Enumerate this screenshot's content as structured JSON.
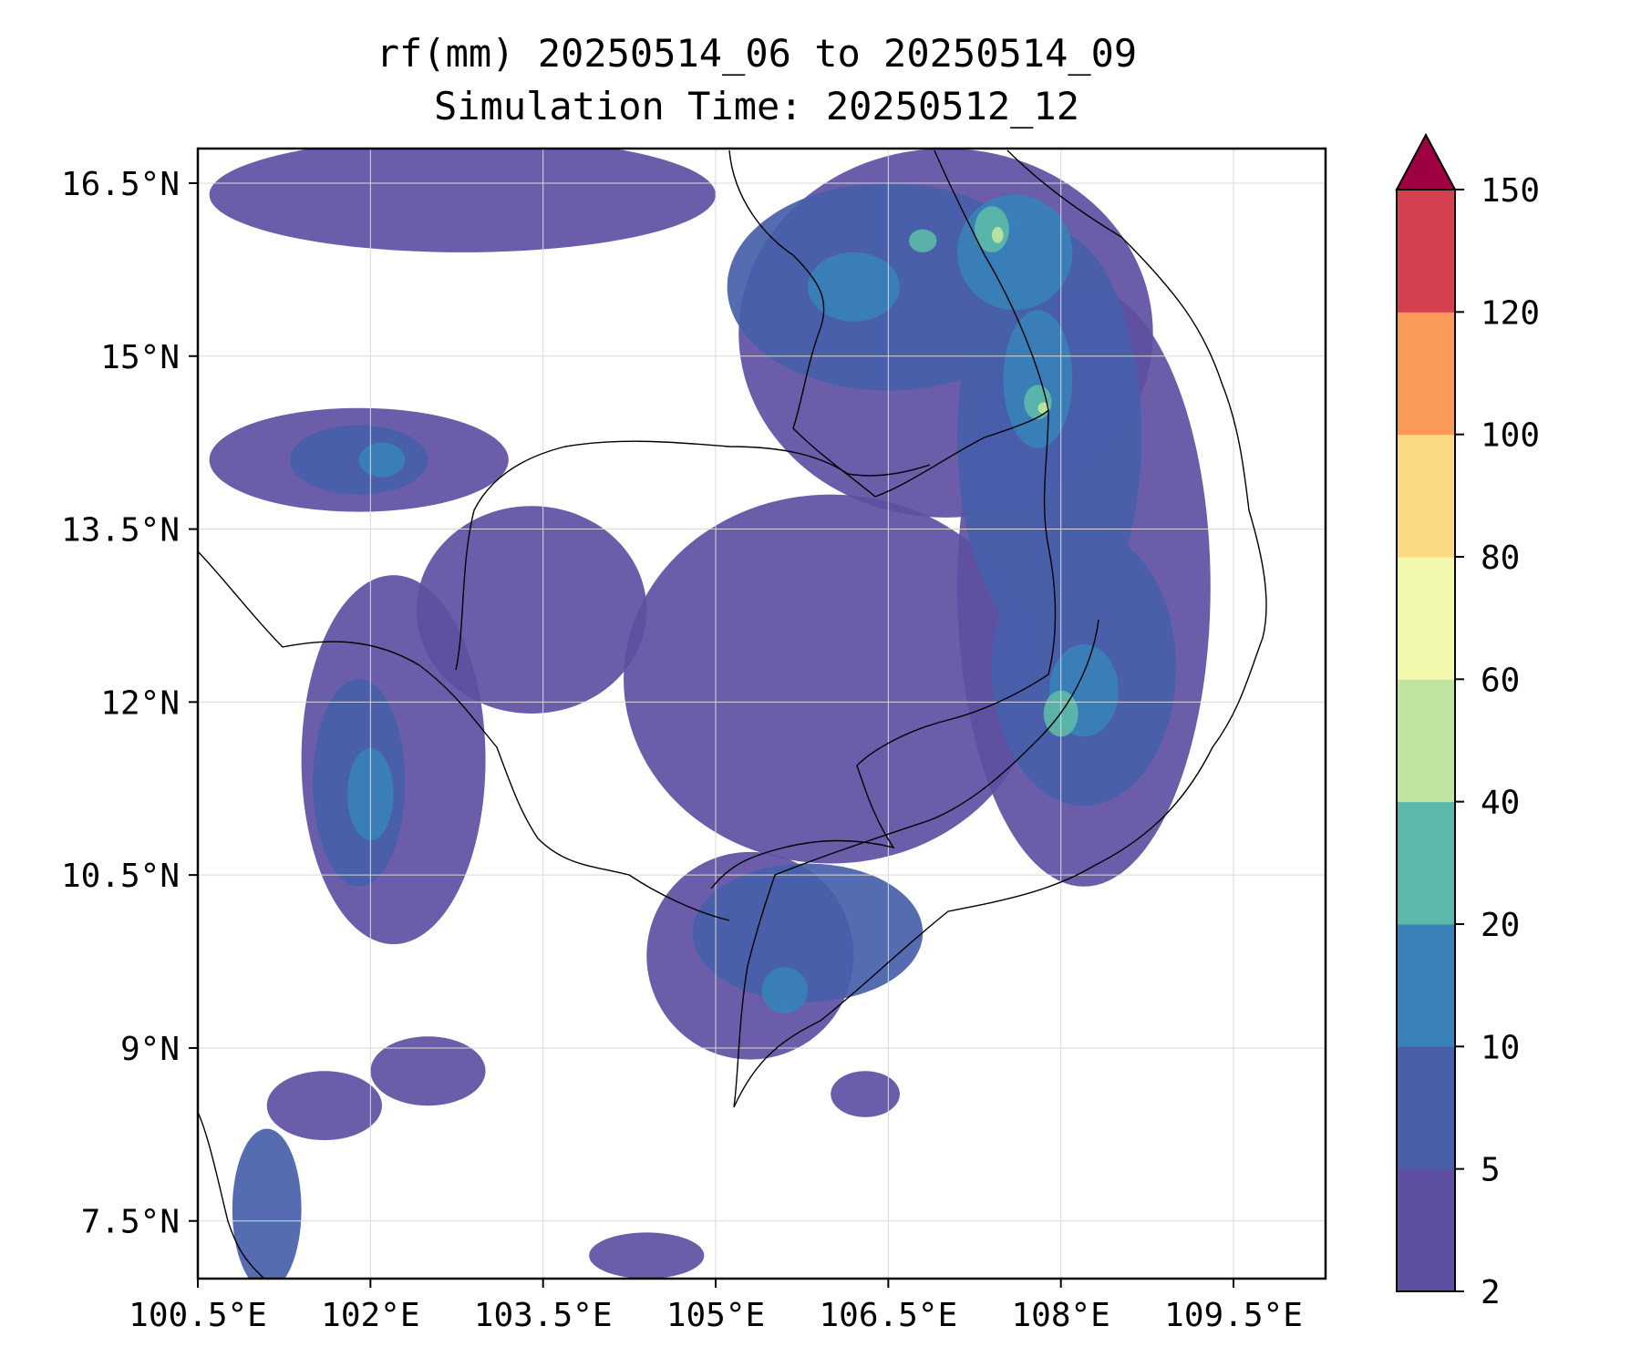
{
  "title": {
    "line1": "rf(mm) 20250514_06 to 20250514_09",
    "line2": "Simulation Time: 20250512_12"
  },
  "map": {
    "extent": {
      "lon": [
        100.5,
        110.3
      ],
      "lat": [
        7.0,
        16.8
      ]
    },
    "lon_ticks": [
      {
        "value": 100.5,
        "label": "100.5°E"
      },
      {
        "value": 102.0,
        "label": "102°E"
      },
      {
        "value": 103.5,
        "label": "103.5°E"
      },
      {
        "value": 105.0,
        "label": "105°E"
      },
      {
        "value": 106.5,
        "label": "106.5°E"
      },
      {
        "value": 108.0,
        "label": "108°E"
      },
      {
        "value": 109.5,
        "label": "109.5°E"
      }
    ],
    "lat_ticks": [
      {
        "value": 16.5,
        "label": "16.5°N"
      },
      {
        "value": 15.0,
        "label": "15°N"
      },
      {
        "value": 13.5,
        "label": "13.5°N"
      },
      {
        "value": 12.0,
        "label": "12°N"
      },
      {
        "value": 10.5,
        "label": "10.5°N"
      },
      {
        "value": 9.0,
        "label": "9°N"
      },
      {
        "value": 7.5,
        "label": "7.5°N"
      }
    ],
    "grid": true
  },
  "colorbar": {
    "levels": [
      {
        "label": "2",
        "color": "#5e4fa2"
      },
      {
        "label": "5",
        "color": "#4860aa"
      },
      {
        "label": "10",
        "color": "#3881b9"
      },
      {
        "label": "20",
        "color": "#5cb8a8"
      },
      {
        "label": "40",
        "color": "#bfe5a0"
      },
      {
        "label": "60",
        "color": "#f2f8ac"
      },
      {
        "label": "80",
        "color": "#fbd985"
      },
      {
        "label": "100",
        "color": "#f99a5a"
      },
      {
        "label": "120",
        "color": "#d5404e"
      },
      {
        "label": "150",
        "color": "#9e0142"
      }
    ],
    "extend": "max"
  },
  "rain_regions": [
    {
      "level": 0,
      "lon": 107.0,
      "lat": 15.2,
      "rx": 1.8,
      "ry": 1.6
    },
    {
      "level": 0,
      "lon": 108.2,
      "lat": 13.0,
      "rx": 1.1,
      "ry": 2.6
    },
    {
      "level": 0,
      "lon": 106.0,
      "lat": 12.2,
      "rx": 1.8,
      "ry": 1.6
    },
    {
      "level": 0,
      "lon": 105.3,
      "lat": 9.8,
      "rx": 0.9,
      "ry": 0.9
    },
    {
      "level": 0,
      "lon": 102.2,
      "lat": 11.5,
      "rx": 0.8,
      "ry": 1.6
    },
    {
      "level": 0,
      "lon": 101.9,
      "lat": 14.1,
      "rx": 1.3,
      "ry": 0.45
    },
    {
      "level": 0,
      "lon": 103.4,
      "lat": 12.8,
      "rx": 1.0,
      "ry": 0.9
    },
    {
      "level": 0,
      "lon": 102.8,
      "lat": 16.4,
      "rx": 2.2,
      "ry": 0.5
    },
    {
      "level": 0,
      "lon": 101.6,
      "lat": 8.5,
      "rx": 0.5,
      "ry": 0.3
    },
    {
      "level": 0,
      "lon": 102.5,
      "lat": 8.8,
      "rx": 0.5,
      "ry": 0.3
    },
    {
      "level": 0,
      "lon": 104.4,
      "lat": 7.2,
      "rx": 0.5,
      "ry": 0.2
    },
    {
      "level": 0,
      "lon": 106.3,
      "lat": 8.6,
      "rx": 0.3,
      "ry": 0.2
    },
    {
      "level": 1,
      "lon": 107.9,
      "lat": 14.3,
      "rx": 0.8,
      "ry": 1.8
    },
    {
      "level": 1,
      "lon": 106.5,
      "lat": 15.6,
      "rx": 1.4,
      "ry": 0.9
    },
    {
      "level": 1,
      "lon": 108.2,
      "lat": 12.3,
      "rx": 0.8,
      "ry": 1.2
    },
    {
      "level": 1,
      "lon": 105.8,
      "lat": 10.0,
      "rx": 1.0,
      "ry": 0.6
    },
    {
      "level": 1,
      "lon": 101.9,
      "lat": 11.3,
      "rx": 0.4,
      "ry": 0.9
    },
    {
      "level": 1,
      "lon": 101.9,
      "lat": 14.1,
      "rx": 0.6,
      "ry": 0.3
    },
    {
      "level": 1,
      "lon": 101.1,
      "lat": 7.6,
      "rx": 0.3,
      "ry": 0.7
    },
    {
      "level": 2,
      "lon": 107.6,
      "lat": 15.9,
      "rx": 0.5,
      "ry": 0.5
    },
    {
      "level": 2,
      "lon": 107.8,
      "lat": 14.8,
      "rx": 0.3,
      "ry": 0.6
    },
    {
      "level": 2,
      "lon": 108.2,
      "lat": 12.1,
      "rx": 0.3,
      "ry": 0.4
    },
    {
      "level": 2,
      "lon": 102.0,
      "lat": 11.2,
      "rx": 0.2,
      "ry": 0.4
    },
    {
      "level": 2,
      "lon": 102.1,
      "lat": 14.1,
      "rx": 0.2,
      "ry": 0.15
    },
    {
      "level": 2,
      "lon": 105.6,
      "lat": 9.5,
      "rx": 0.2,
      "ry": 0.2
    },
    {
      "level": 2,
      "lon": 106.2,
      "lat": 15.6,
      "rx": 0.4,
      "ry": 0.3
    },
    {
      "level": 3,
      "lon": 107.4,
      "lat": 16.1,
      "rx": 0.15,
      "ry": 0.2
    },
    {
      "level": 3,
      "lon": 107.8,
      "lat": 14.6,
      "rx": 0.12,
      "ry": 0.15
    },
    {
      "level": 3,
      "lon": 108.0,
      "lat": 11.9,
      "rx": 0.15,
      "ry": 0.2
    },
    {
      "level": 3,
      "lon": 106.8,
      "lat": 16.0,
      "rx": 0.12,
      "ry": 0.1
    },
    {
      "level": 4,
      "lon": 107.45,
      "lat": 16.05,
      "rx": 0.05,
      "ry": 0.07
    },
    {
      "level": 4,
      "lon": 107.85,
      "lat": 14.55,
      "rx": 0.05,
      "ry": 0.05
    }
  ]
}
